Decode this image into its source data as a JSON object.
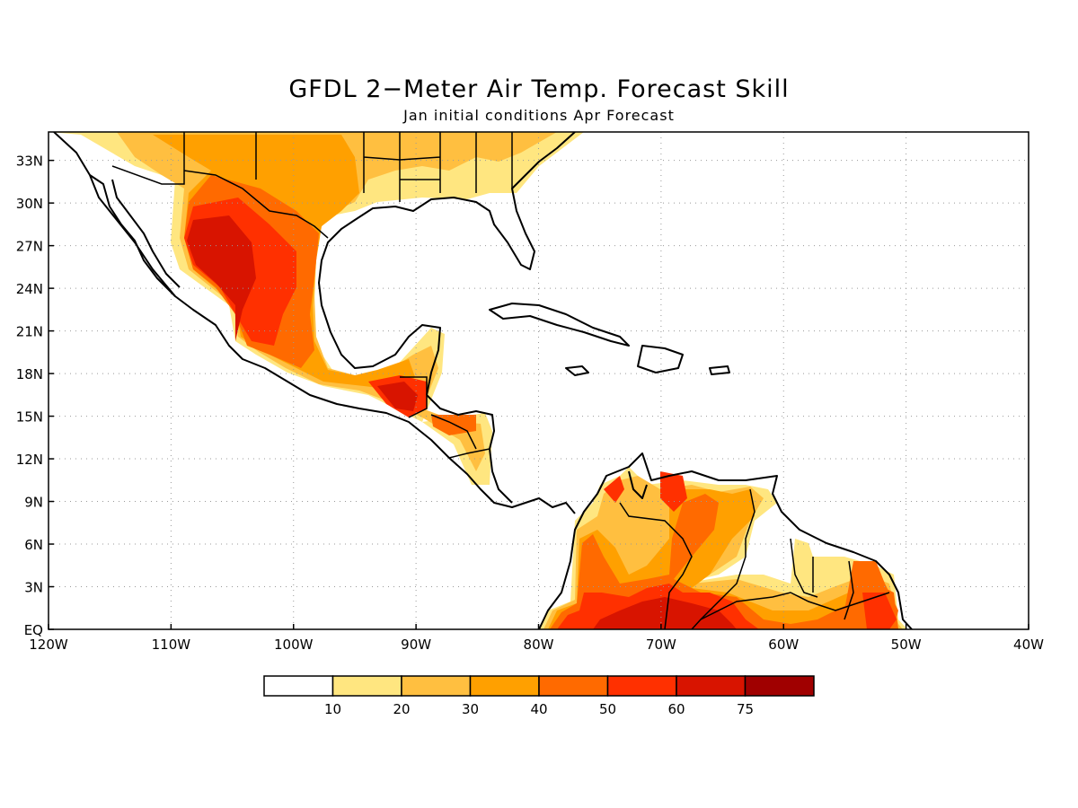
{
  "title": "GFDL 2−Meter Air Temp. Forecast Skill",
  "subtitle": "Jan initial conditions  Apr Forecast",
  "map": {
    "lon_range": [
      -120,
      -40
    ],
    "lat_range": [
      0,
      35
    ],
    "x_ticks": [
      "120W",
      "110W",
      "100W",
      "90W",
      "80W",
      "70W",
      "60W",
      "50W",
      "40W"
    ],
    "y_ticks": [
      "EQ",
      "3N",
      "6N",
      "9N",
      "12N",
      "15N",
      "18N",
      "21N",
      "24N",
      "27N",
      "30N",
      "33N"
    ],
    "grid": "dotted"
  },
  "colorbar": {
    "labels": [
      "10",
      "20",
      "30",
      "40",
      "50",
      "60",
      "75"
    ],
    "colors": [
      "#ffffff",
      "#ffe680",
      "#ffbf40",
      "#ffa000",
      "#ff6a00",
      "#ff3000",
      "#d81400",
      "#a00000"
    ]
  }
}
